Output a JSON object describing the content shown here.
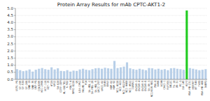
{
  "chart_data": {
    "type": "bar",
    "title": "Protein Array Results for mAb CPTC-AKT1-2",
    "categories": [
      "U251-MG",
      "SF-295",
      "SF-539",
      "SF-268",
      "SNB-19",
      "SNB-75",
      "U87-MG",
      "COLO205",
      "HCC-2998",
      "HCT-116",
      "HCT-15",
      "HT29",
      "KM12",
      "SW-620",
      "CCRF-CEM",
      "HL-60(TB)",
      "K-562",
      "MOLT-4",
      "RPMI-8226",
      "SR",
      "LOX-IMVI",
      "MALME-3M",
      "M14",
      "SK-MEL-2",
      "SK-MEL-28",
      "SK-MEL-5",
      "UACC-257",
      "UACC-62",
      "A549",
      "EKVX",
      "HOP-62",
      "HOP-92",
      "NCI-H226",
      "NCI-H23",
      "NCI-H322M",
      "NCI-H460",
      "NCI-H522",
      "IGROV1",
      "OVCAR-3",
      "OVCAR-4",
      "OVCAR-5",
      "OVCAR-8",
      "SK-OV-3",
      "NCI/ADR-RES",
      "786-0",
      "A498",
      "ACHN",
      "CAKI-1",
      "RXF393",
      "SN12C",
      "TK-10",
      "UO-31",
      "PC-3",
      "DU-145",
      "MCF7",
      "MDA-MB-231",
      "HS578T",
      "BT-549",
      "T47D",
      "MDA-MB-468",
      "SKBR3"
    ],
    "values": [
      0.72,
      0.65,
      0.58,
      0.62,
      0.7,
      0.55,
      0.68,
      0.75,
      0.8,
      0.72,
      0.68,
      0.85,
      0.7,
      0.78,
      0.6,
      0.58,
      0.65,
      0.55,
      0.62,
      0.6,
      0.7,
      0.75,
      0.68,
      0.65,
      0.72,
      0.78,
      0.8,
      0.75,
      0.82,
      0.78,
      0.75,
      1.3,
      0.8,
      0.85,
      0.9,
      1.2,
      0.78,
      0.72,
      0.68,
      0.75,
      0.7,
      0.65,
      0.8,
      0.78,
      0.7,
      0.75,
      0.68,
      0.72,
      0.65,
      0.78,
      0.8,
      0.75,
      0.72,
      0.68,
      4.85,
      0.8,
      0.75,
      0.7,
      0.65,
      0.68,
      0.72
    ],
    "colors": [
      "#b8cfe8",
      "#b8cfe8",
      "#b8cfe8",
      "#b8cfe8",
      "#b8cfe8",
      "#b8cfe8",
      "#b8cfe8",
      "#b8cfe8",
      "#b8cfe8",
      "#b8cfe8",
      "#b8cfe8",
      "#b8cfe8",
      "#b8cfe8",
      "#b8cfe8",
      "#b8cfe8",
      "#b8cfe8",
      "#b8cfe8",
      "#b8cfe8",
      "#b8cfe8",
      "#b8cfe8",
      "#b8cfe8",
      "#b8cfe8",
      "#b8cfe8",
      "#b8cfe8",
      "#b8cfe8",
      "#b8cfe8",
      "#b8cfe8",
      "#b8cfe8",
      "#b8cfe8",
      "#b8cfe8",
      "#b8cfe8",
      "#b8cfe8",
      "#b8cfe8",
      "#b8cfe8",
      "#b8cfe8",
      "#b8cfe8",
      "#b8cfe8",
      "#b8cfe8",
      "#b8cfe8",
      "#b8cfe8",
      "#b8cfe8",
      "#b8cfe8",
      "#b8cfe8",
      "#b8cfe8",
      "#b8cfe8",
      "#b8cfe8",
      "#b8cfe8",
      "#b8cfe8",
      "#b8cfe8",
      "#b8cfe8",
      "#b8cfe8",
      "#b8cfe8",
      "#b8cfe8",
      "#b8cfe8",
      "#22cc22",
      "#b8cfe8",
      "#b8cfe8",
      "#b8cfe8",
      "#b8cfe8",
      "#b8cfe8",
      "#b8cfe8"
    ],
    "ylim": [
      0.0,
      5.0
    ],
    "yticks": [
      {
        "value": 0.0,
        "label": "0.0"
      },
      0.5,
      {
        "value": 1.0,
        "label": "1.0"
      },
      1.5,
      {
        "value": 2.0,
        "label": "2.0"
      },
      2.5,
      {
        "value": 3.0,
        "label": "3.0"
      },
      3.5,
      {
        "value": 4.0,
        "label": "4.0"
      },
      4.5,
      {
        "value": 5.0,
        "label": "5.0"
      }
    ],
    "grid": true
  }
}
